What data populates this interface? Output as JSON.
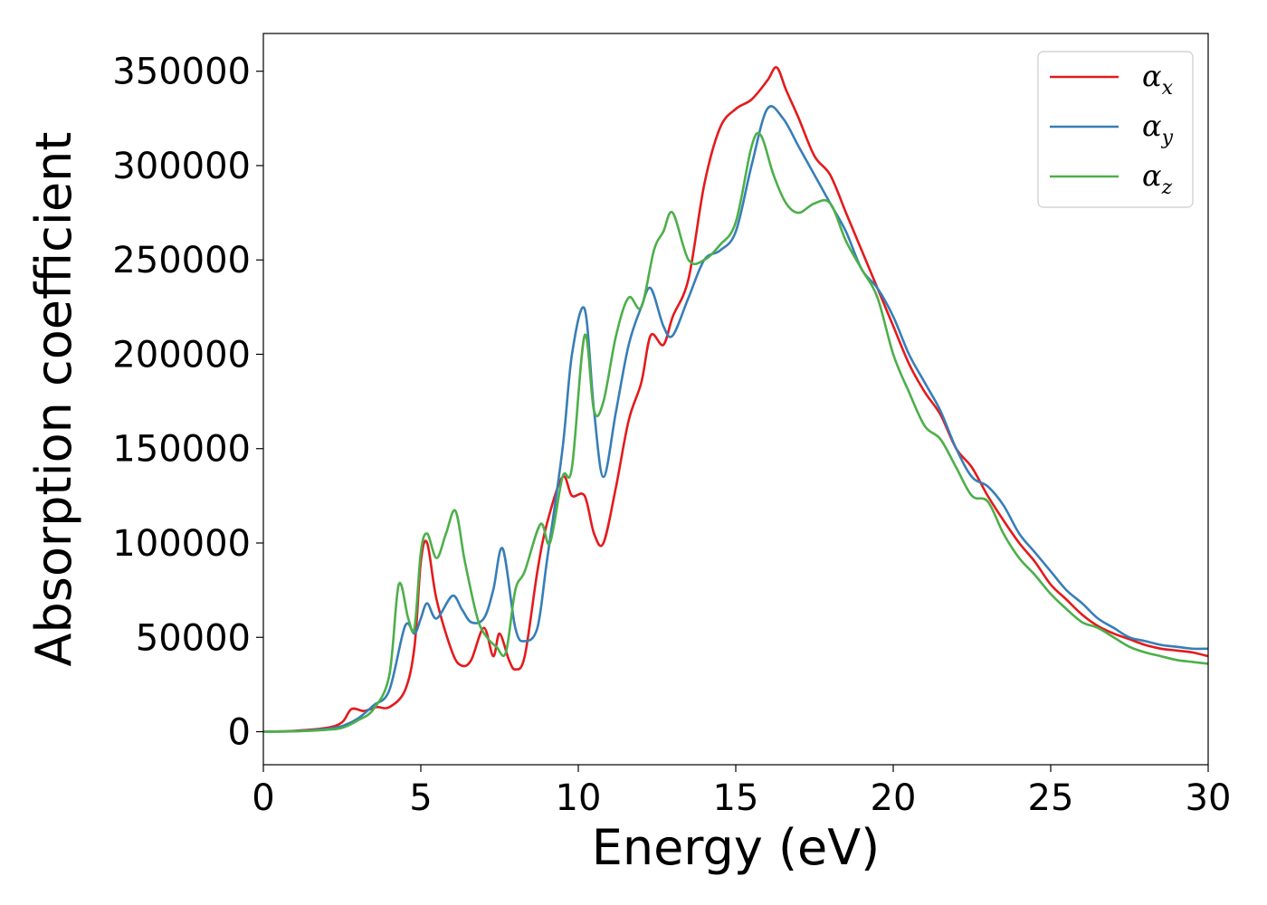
{
  "chart_data": {
    "type": "line",
    "title": "",
    "xlabel": "Energy (eV)",
    "ylabel": "Absorption coefficient",
    "xlim": [
      0,
      30
    ],
    "ylim": [
      -17500,
      370000
    ],
    "xticks": [
      0,
      5,
      10,
      15,
      20,
      25,
      30
    ],
    "xtick_labels": [
      "0",
      "5",
      "10",
      "15",
      "20",
      "25",
      "30"
    ],
    "yticks": [
      0,
      50000,
      100000,
      150000,
      200000,
      250000,
      300000,
      350000
    ],
    "ytick_labels": [
      "0",
      "50000",
      "100000",
      "150000",
      "200000",
      "250000",
      "300000",
      "350000"
    ],
    "grid": false,
    "legend_position": "top-right",
    "series": [
      {
        "name": "αx",
        "symbol": "α",
        "subscript": "x",
        "color": "#e41a1c",
        "x": [
          0,
          1,
          2,
          2.5,
          2.8,
          3.2,
          3.6,
          4.0,
          4.5,
          4.8,
          5.0,
          5.2,
          5.5,
          6.0,
          6.3,
          6.6,
          7.0,
          7.3,
          7.5,
          7.8,
          8.0,
          8.3,
          8.7,
          9.0,
          9.5,
          9.8,
          10.2,
          10.5,
          10.8,
          11.2,
          11.6,
          12.0,
          12.3,
          12.7,
          13.0,
          13.5,
          14.0,
          14.5,
          15.0,
          15.5,
          16.0,
          16.3,
          16.6,
          17.0,
          17.5,
          18.0,
          18.5,
          19.0,
          19.5,
          20.0,
          20.5,
          21.0,
          21.5,
          22.0,
          22.5,
          23.0,
          23.5,
          24.0,
          24.5,
          25.0,
          25.5,
          26.0,
          26.5,
          27.0,
          27.5,
          28.0,
          28.5,
          29.0,
          29.5,
          30.0
        ],
        "y": [
          0,
          500,
          2000,
          5000,
          12000,
          11000,
          13000,
          13000,
          22000,
          45000,
          90000,
          100000,
          70000,
          42000,
          35000,
          38000,
          55000,
          40000,
          52000,
          38000,
          33000,
          40000,
          85000,
          110000,
          135000,
          125000,
          125000,
          105000,
          100000,
          130000,
          165000,
          185000,
          210000,
          205000,
          220000,
          240000,
          290000,
          320000,
          330000,
          335000,
          345000,
          352000,
          340000,
          325000,
          305000,
          295000,
          275000,
          255000,
          235000,
          215000,
          195000,
          180000,
          168000,
          150000,
          140000,
          125000,
          112000,
          100000,
          90000,
          78000,
          70000,
          62000,
          56000,
          52000,
          49000,
          46000,
          44000,
          43000,
          42000,
          40000
        ]
      },
      {
        "name": "αy",
        "symbol": "α",
        "subscript": "y",
        "color": "#377eb8",
        "x": [
          0,
          1,
          2,
          2.5,
          3.0,
          3.5,
          4.0,
          4.5,
          4.8,
          5.0,
          5.2,
          5.5,
          6.0,
          6.3,
          6.6,
          7.0,
          7.3,
          7.6,
          8.0,
          8.3,
          8.7,
          9.0,
          9.5,
          9.8,
          10.2,
          10.5,
          10.8,
          11.2,
          11.6,
          12.0,
          12.3,
          12.7,
          13.0,
          13.5,
          14.0,
          14.5,
          15.0,
          15.5,
          16.0,
          16.5,
          17.0,
          17.5,
          18.0,
          18.5,
          19.0,
          19.5,
          20.0,
          20.5,
          21.0,
          21.5,
          22.0,
          22.5,
          23.0,
          23.5,
          24.0,
          24.5,
          25.0,
          25.5,
          26.0,
          26.5,
          27.0,
          27.5,
          28.0,
          28.5,
          29.0,
          29.5,
          30.0
        ],
        "y": [
          0,
          300,
          1500,
          3000,
          7000,
          14000,
          22000,
          56000,
          52000,
          60000,
          68000,
          60000,
          72000,
          65000,
          58000,
          60000,
          75000,
          97000,
          55000,
          48000,
          55000,
          90000,
          150000,
          200000,
          224000,
          170000,
          135000,
          170000,
          205000,
          225000,
          235000,
          215000,
          210000,
          230000,
          250000,
          255000,
          265000,
          300000,
          330000,
          325000,
          310000,
          295000,
          280000,
          265000,
          245000,
          235000,
          220000,
          200000,
          185000,
          170000,
          150000,
          135000,
          130000,
          120000,
          105000,
          95000,
          85000,
          75000,
          68000,
          60000,
          55000,
          50000,
          48000,
          46000,
          45000,
          44000,
          44000
        ]
      },
      {
        "name": "αz",
        "symbol": "α",
        "subscript": "z",
        "color": "#4daf4a",
        "x": [
          0,
          1,
          2,
          2.5,
          3.0,
          3.5,
          4.0,
          4.3,
          4.6,
          4.8,
          5.0,
          5.2,
          5.5,
          5.8,
          6.1,
          6.4,
          6.8,
          7.1,
          7.4,
          7.7,
          8.0,
          8.3,
          8.8,
          9.1,
          9.5,
          9.8,
          10.2,
          10.5,
          10.8,
          11.2,
          11.6,
          12.0,
          12.4,
          12.7,
          13.0,
          13.5,
          14.0,
          14.5,
          15.0,
          15.5,
          15.8,
          16.2,
          16.6,
          17.0,
          17.5,
          18.0,
          18.5,
          19.0,
          19.5,
          20.0,
          20.5,
          21.0,
          21.5,
          22.0,
          22.5,
          23.0,
          23.5,
          24.0,
          24.5,
          25.0,
          25.5,
          26.0,
          26.5,
          27.0,
          27.5,
          28.0,
          28.5,
          29.0,
          29.5,
          30.0
        ],
        "y": [
          0,
          200,
          1000,
          2000,
          6000,
          12000,
          30000,
          78000,
          60000,
          55000,
          95000,
          105000,
          92000,
          105000,
          117000,
          90000,
          60000,
          50000,
          45000,
          42000,
          75000,
          85000,
          110000,
          100000,
          135000,
          140000,
          210000,
          170000,
          175000,
          210000,
          230000,
          225000,
          255000,
          265000,
          275000,
          250000,
          250000,
          258000,
          270000,
          310000,
          316000,
          295000,
          280000,
          275000,
          280000,
          280000,
          260000,
          245000,
          230000,
          200000,
          180000,
          162000,
          155000,
          140000,
          125000,
          122000,
          105000,
          92000,
          83000,
          73000,
          65000,
          58000,
          55000,
          50000,
          45000,
          42000,
          40000,
          38000,
          37000,
          36000
        ]
      }
    ]
  }
}
